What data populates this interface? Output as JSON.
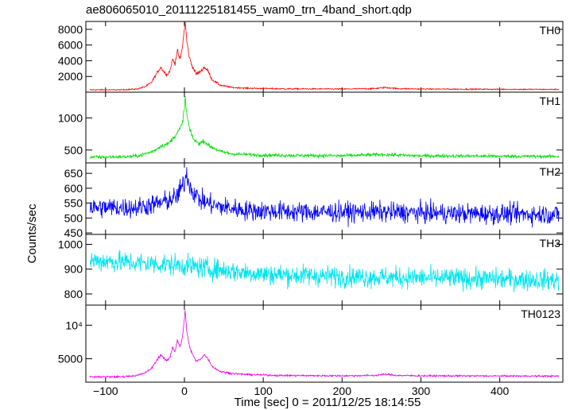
{
  "chart_data": {
    "type": "line",
    "title": "ae806065010_20111225181455_wam0_trn_4band_short.qdp",
    "xlabel": "Time [sec] 0 = 2011/12/25 18:14:55",
    "ylabel": "Counts/sec",
    "xlim": [
      -125,
      480
    ],
    "x_ticks": [
      -100,
      0,
      100,
      200,
      300,
      400
    ],
    "x_tick_labels": [
      "−100",
      "0",
      "100",
      "200",
      "300",
      "400"
    ],
    "grid": false,
    "panels": [
      {
        "label": "TH0",
        "color": "#ff0000",
        "ylim": [
          0,
          9000
        ],
        "y_ticks": [
          2000,
          4000,
          6000,
          8000
        ],
        "y_tick_labels": [
          "2000",
          "4000",
          "6000",
          "8000"
        ],
        "baseline": 300,
        "noise": 50,
        "profile": [
          {
            "x": -120,
            "y": 300
          },
          {
            "x": -80,
            "y": 300
          },
          {
            "x": -60,
            "y": 400
          },
          {
            "x": -50,
            "y": 700
          },
          {
            "x": -42,
            "y": 1200
          },
          {
            "x": -35,
            "y": 2400
          },
          {
            "x": -30,
            "y": 3200
          },
          {
            "x": -26,
            "y": 2600
          },
          {
            "x": -22,
            "y": 2200
          },
          {
            "x": -18,
            "y": 2800
          },
          {
            "x": -15,
            "y": 4200
          },
          {
            "x": -12,
            "y": 3600
          },
          {
            "x": -9,
            "y": 5300
          },
          {
            "x": -6,
            "y": 4200
          },
          {
            "x": -4,
            "y": 4800
          },
          {
            "x": -2,
            "y": 6200
          },
          {
            "x": 0,
            "y": 8200
          },
          {
            "x": 1,
            "y": 9000
          },
          {
            "x": 3,
            "y": 6500
          },
          {
            "x": 6,
            "y": 4500
          },
          {
            "x": 10,
            "y": 3300
          },
          {
            "x": 15,
            "y": 2300
          },
          {
            "x": 20,
            "y": 2600
          },
          {
            "x": 25,
            "y": 3200
          },
          {
            "x": 30,
            "y": 2700
          },
          {
            "x": 35,
            "y": 1600
          },
          {
            "x": 45,
            "y": 900
          },
          {
            "x": 60,
            "y": 600
          },
          {
            "x": 80,
            "y": 500
          },
          {
            "x": 120,
            "y": 430
          },
          {
            "x": 200,
            "y": 400
          },
          {
            "x": 240,
            "y": 450
          },
          {
            "x": 255,
            "y": 600
          },
          {
            "x": 270,
            "y": 450
          },
          {
            "x": 300,
            "y": 400
          },
          {
            "x": 475,
            "y": 350
          }
        ]
      },
      {
        "label": "TH1",
        "color": "#00dd00",
        "ylim": [
          300,
          1400
        ],
        "y_ticks": [
          500,
          1000
        ],
        "y_tick_labels": [
          "500",
          "1000"
        ],
        "baseline": 390,
        "noise": 18,
        "profile": [
          {
            "x": -120,
            "y": 390
          },
          {
            "x": -70,
            "y": 395
          },
          {
            "x": -55,
            "y": 420
          },
          {
            "x": -40,
            "y": 480
          },
          {
            "x": -30,
            "y": 560
          },
          {
            "x": -20,
            "y": 600
          },
          {
            "x": -12,
            "y": 720
          },
          {
            "x": -6,
            "y": 820
          },
          {
            "x": -3,
            "y": 900
          },
          {
            "x": 0,
            "y": 1150
          },
          {
            "x": 1,
            "y": 1320
          },
          {
            "x": 3,
            "y": 1050
          },
          {
            "x": 7,
            "y": 800
          },
          {
            "x": 12,
            "y": 660
          },
          {
            "x": 18,
            "y": 600
          },
          {
            "x": 25,
            "y": 640
          },
          {
            "x": 32,
            "y": 560
          },
          {
            "x": 45,
            "y": 480
          },
          {
            "x": 60,
            "y": 440
          },
          {
            "x": 100,
            "y": 420
          },
          {
            "x": 200,
            "y": 410
          },
          {
            "x": 250,
            "y": 430
          },
          {
            "x": 300,
            "y": 410
          },
          {
            "x": 475,
            "y": 400
          }
        ]
      },
      {
        "label": "TH2",
        "color": "#0000ff",
        "ylim": [
          445,
          685
        ],
        "y_ticks": [
          450,
          500,
          550,
          600,
          650
        ],
        "y_tick_labels": [
          "450",
          "500",
          "550",
          "600",
          "650"
        ],
        "baseline": 520,
        "noise": 24,
        "profile": [
          {
            "x": -120,
            "y": 535
          },
          {
            "x": -60,
            "y": 535
          },
          {
            "x": -30,
            "y": 550
          },
          {
            "x": -10,
            "y": 570
          },
          {
            "x": 0,
            "y": 620
          },
          {
            "x": 3,
            "y": 650
          },
          {
            "x": 8,
            "y": 600
          },
          {
            "x": 20,
            "y": 560
          },
          {
            "x": 40,
            "y": 540
          },
          {
            "x": 80,
            "y": 525
          },
          {
            "x": 150,
            "y": 520
          },
          {
            "x": 250,
            "y": 520
          },
          {
            "x": 350,
            "y": 515
          },
          {
            "x": 475,
            "y": 512
          }
        ]
      },
      {
        "label": "TH3",
        "color": "#00e5ee",
        "ylim": [
          755,
          1040
        ],
        "y_ticks": [
          800,
          900,
          1000
        ],
        "y_tick_labels": [
          "800",
          "900",
          "1000"
        ],
        "baseline": 860,
        "noise": 30,
        "profile": [
          {
            "x": -120,
            "y": 935
          },
          {
            "x": -60,
            "y": 925
          },
          {
            "x": 0,
            "y": 915
          },
          {
            "x": 50,
            "y": 895
          },
          {
            "x": 100,
            "y": 880
          },
          {
            "x": 200,
            "y": 870
          },
          {
            "x": 300,
            "y": 865
          },
          {
            "x": 400,
            "y": 860
          },
          {
            "x": 475,
            "y": 855
          }
        ]
      },
      {
        "label": "TH0123",
        "color": "#ee00ee",
        "ylim": [
          1500,
          13000
        ],
        "y_ticks": [
          5000,
          10000
        ],
        "y_tick_labels": [
          "5000",
          "10⁴"
        ],
        "baseline": 2300,
        "noise": 90,
        "profile": [
          {
            "x": -120,
            "y": 2300
          },
          {
            "x": -80,
            "y": 2300
          },
          {
            "x": -60,
            "y": 2500
          },
          {
            "x": -50,
            "y": 2900
          },
          {
            "x": -42,
            "y": 3500
          },
          {
            "x": -35,
            "y": 4800
          },
          {
            "x": -30,
            "y": 5600
          },
          {
            "x": -26,
            "y": 5000
          },
          {
            "x": -22,
            "y": 4700
          },
          {
            "x": -18,
            "y": 5300
          },
          {
            "x": -15,
            "y": 6800
          },
          {
            "x": -12,
            "y": 6000
          },
          {
            "x": -9,
            "y": 7800
          },
          {
            "x": -6,
            "y": 6800
          },
          {
            "x": -4,
            "y": 7300
          },
          {
            "x": -2,
            "y": 8700
          },
          {
            "x": 0,
            "y": 11000
          },
          {
            "x": 1,
            "y": 12500
          },
          {
            "x": 3,
            "y": 9000
          },
          {
            "x": 6,
            "y": 7000
          },
          {
            "x": 10,
            "y": 5700
          },
          {
            "x": 15,
            "y": 4600
          },
          {
            "x": 20,
            "y": 4900
          },
          {
            "x": 25,
            "y": 5600
          },
          {
            "x": 30,
            "y": 5000
          },
          {
            "x": 35,
            "y": 3900
          },
          {
            "x": 45,
            "y": 3100
          },
          {
            "x": 60,
            "y": 2800
          },
          {
            "x": 80,
            "y": 2650
          },
          {
            "x": 120,
            "y": 2500
          },
          {
            "x": 200,
            "y": 2450
          },
          {
            "x": 240,
            "y": 2500
          },
          {
            "x": 255,
            "y": 2700
          },
          {
            "x": 270,
            "y": 2500
          },
          {
            "x": 300,
            "y": 2450
          },
          {
            "x": 475,
            "y": 2400
          }
        ]
      }
    ]
  }
}
